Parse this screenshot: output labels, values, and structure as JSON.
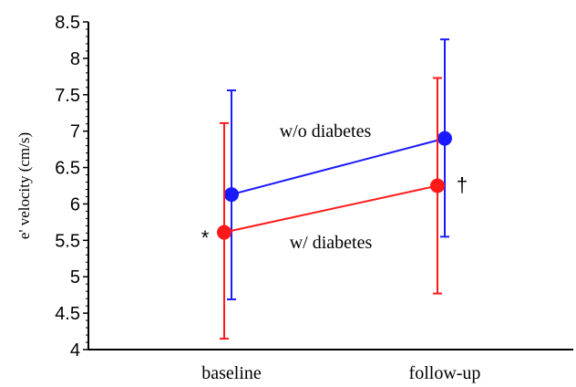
{
  "chart_data": {
    "type": "line",
    "categories": [
      "baseline",
      "follow-up"
    ],
    "ylabel": "e' velocity (cm/s)",
    "ylim": [
      4,
      8.5
    ],
    "yticks": [
      "4",
      "4.5",
      "5",
      "5.5",
      "6",
      "6.5",
      "7",
      "7.5",
      "8",
      "8.5"
    ],
    "series": [
      {
        "name": "w/o diabetes",
        "color": "#1a1aff",
        "values": [
          6.13,
          6.9
        ],
        "error_low": [
          4.69,
          5.55
        ],
        "error_high": [
          7.56,
          8.26
        ]
      },
      {
        "name": "w/ diabetes",
        "color": "#ff1a1a",
        "values": [
          5.61,
          6.25
        ],
        "error_low": [
          4.15,
          4.77
        ],
        "error_high": [
          7.11,
          7.73
        ]
      }
    ],
    "annotations": {
      "baseline_marker": "*",
      "followup_marker": "†"
    }
  }
}
